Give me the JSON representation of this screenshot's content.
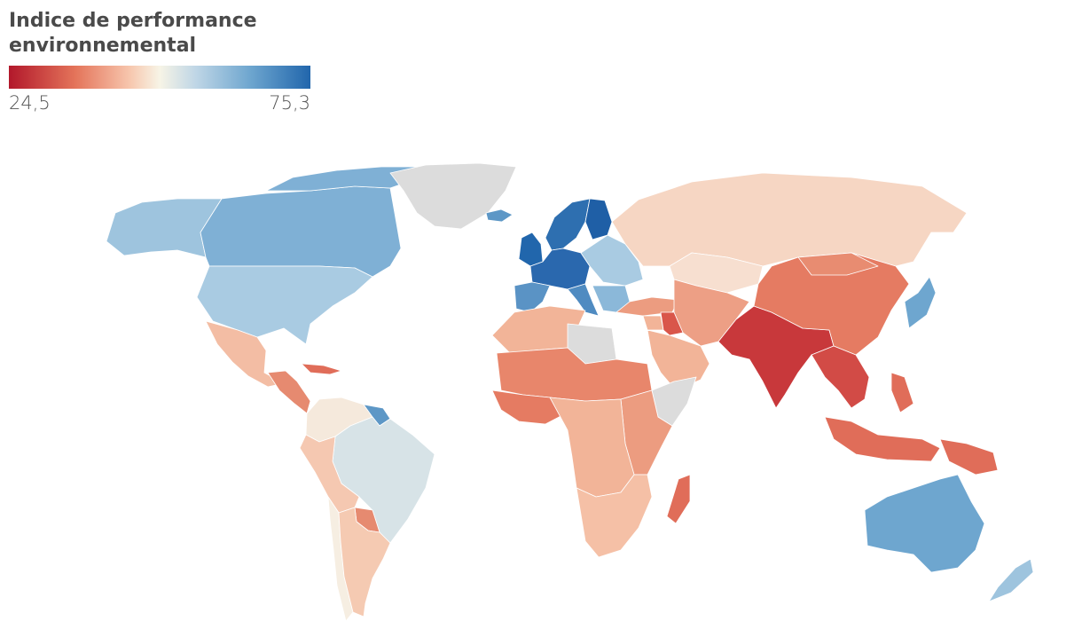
{
  "title": "Indice de performance environnemental",
  "legend": {
    "min": "24,5",
    "max": "75,3"
  },
  "colors": {
    "scale_low": "#b2182b",
    "scale_mid": "#f7f4e6",
    "scale_high": "#2166ac",
    "no_data": "#dcdcdc"
  },
  "regions": [
    {
      "name": "alaska",
      "color": "#9ec4de"
    },
    {
      "name": "canada",
      "color": "#7fb0d5"
    },
    {
      "name": "arctic-islands",
      "color": "#7fb0d5"
    },
    {
      "name": "greenland",
      "color": "#dcdcdc"
    },
    {
      "name": "usa",
      "color": "#a9cbe2"
    },
    {
      "name": "mexico",
      "color": "#f3bda4"
    },
    {
      "name": "central-america",
      "color": "#e68a70"
    },
    {
      "name": "caribbean",
      "color": "#e06d59"
    },
    {
      "name": "colombia-venezuela",
      "color": "#f5e9dc"
    },
    {
      "name": "guianas",
      "color": "#5d97c6"
    },
    {
      "name": "brazil",
      "color": "#d7e3e7"
    },
    {
      "name": "peru-bolivia",
      "color": "#f5c8b1"
    },
    {
      "name": "paraguay",
      "color": "#e68a70"
    },
    {
      "name": "chile",
      "color": "#f6eee2"
    },
    {
      "name": "argentina",
      "color": "#f5cab2"
    },
    {
      "name": "iceland",
      "color": "#5d97c6"
    },
    {
      "name": "uk-ireland",
      "color": "#2166ac"
    },
    {
      "name": "scandinavia",
      "color": "#2e6fb0"
    },
    {
      "name": "finland",
      "color": "#1f5fa6"
    },
    {
      "name": "western-europe",
      "color": "#2a68ae"
    },
    {
      "name": "iberia",
      "color": "#5a93c5"
    },
    {
      "name": "italy",
      "color": "#4f8bc1"
    },
    {
      "name": "eastern-europe",
      "color": "#a9cbe2"
    },
    {
      "name": "balkans",
      "color": "#8bb8d9"
    },
    {
      "name": "russia",
      "color": "#f6d6c3"
    },
    {
      "name": "kazakhstan",
      "color": "#f7dfd0"
    },
    {
      "name": "turkey",
      "color": "#ec9c80"
    },
    {
      "name": "middle-east",
      "color": "#f2b498"
    },
    {
      "name": "iraq",
      "color": "#d9564a"
    },
    {
      "name": "arabia",
      "color": "#f2b498"
    },
    {
      "name": "iran-central-asia",
      "color": "#ed9f85"
    },
    {
      "name": "south-asia",
      "color": "#c8383b"
    },
    {
      "name": "china",
      "color": "#e57b62"
    },
    {
      "name": "mongolia",
      "color": "#e88c71"
    },
    {
      "name": "korea-japan",
      "color": "#6ea6cf"
    },
    {
      "name": "southeast-asia",
      "color": "#d24b46"
    },
    {
      "name": "indonesia",
      "color": "#e06d59"
    },
    {
      "name": "philippines",
      "color": "#e06d59"
    },
    {
      "name": "papua",
      "color": "#e06d59"
    },
    {
      "name": "north-africa",
      "color": "#f2b498"
    },
    {
      "name": "libya",
      "color": "#dcdcdc"
    },
    {
      "name": "sahel",
      "color": "#e8866b"
    },
    {
      "name": "west-africa",
      "color": "#e57b62"
    },
    {
      "name": "east-africa",
      "color": "#ec9c80"
    },
    {
      "name": "horn-of-africa",
      "color": "#dcdcdc"
    },
    {
      "name": "central-africa",
      "color": "#f2b498"
    },
    {
      "name": "southern-africa",
      "color": "#f5c0a6"
    },
    {
      "name": "madagascar",
      "color": "#e06d59"
    },
    {
      "name": "australia",
      "color": "#6ea6cf"
    },
    {
      "name": "new-zealand",
      "color": "#9ec4de"
    }
  ]
}
